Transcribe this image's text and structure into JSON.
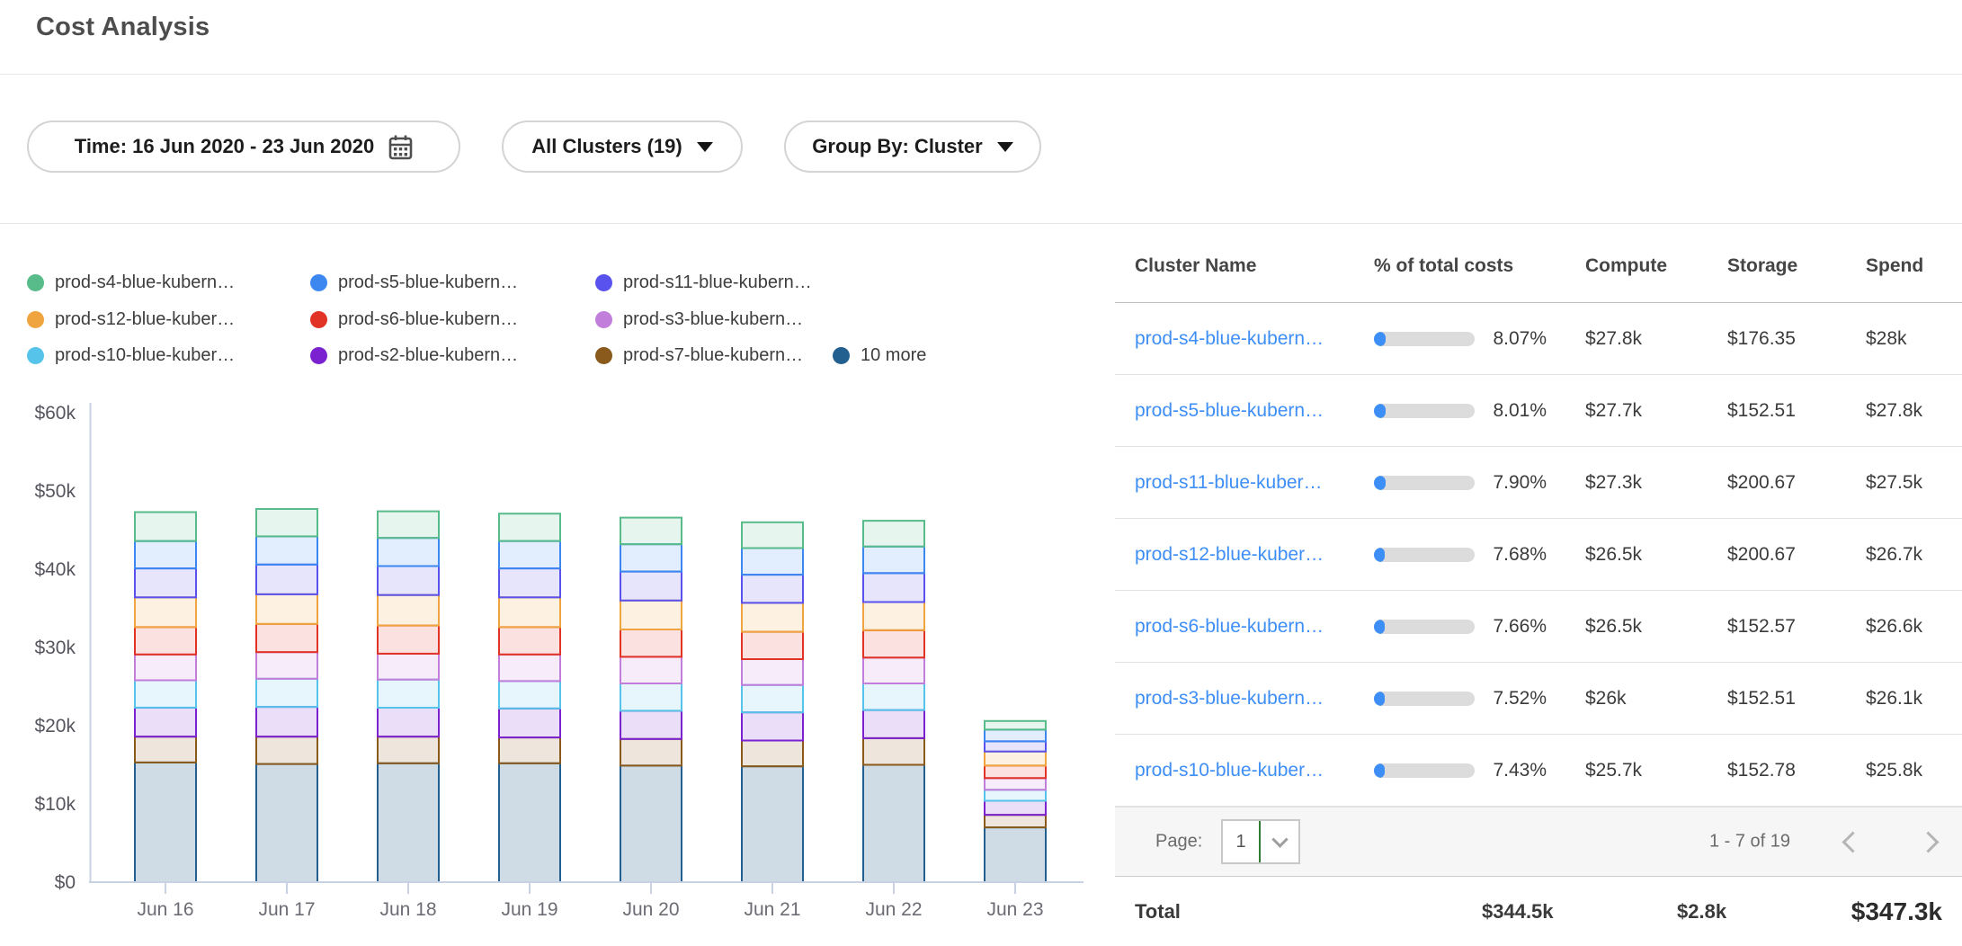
{
  "page": {
    "title": "Cost Analysis"
  },
  "filters": {
    "time": {
      "label": "Time: 16 Jun 2020 - 23 Jun 2020"
    },
    "clusters": {
      "label": "All Clusters (19)"
    },
    "group_by": {
      "label": "Group By: Cluster"
    }
  },
  "legend": {
    "items": [
      {
        "label": "prod-s4-blue-kubern…",
        "color": "#57bb8a"
      },
      {
        "label": "prod-s5-blue-kubern…",
        "color": "#3d87f0"
      },
      {
        "label": "prod-s11-blue-kubern…",
        "color": "#5a52ee"
      },
      {
        "label": "prod-s12-blue-kuber…",
        "color": "#f0a43f"
      },
      {
        "label": "prod-s6-blue-kubern…",
        "color": "#e23327"
      },
      {
        "label": "prod-s3-blue-kubern…",
        "color": "#c27edb"
      },
      {
        "label": "prod-s10-blue-kuber…",
        "color": "#55c3ea"
      },
      {
        "label": "prod-s2-blue-kubern…",
        "color": "#7a22d0"
      },
      {
        "label": "prod-s7-blue-kubern…",
        "color": "#8a5a1c"
      },
      {
        "label": "10 more",
        "color": "#235f8f"
      }
    ]
  },
  "chart_data": {
    "type": "bar",
    "stacked": true,
    "title": "",
    "xlabel": "",
    "ylabel": "",
    "unit": "$k",
    "ylim": [
      0,
      60
    ],
    "yticks": [
      "$0",
      "$10k",
      "$20k",
      "$30k",
      "$40k",
      "$50k",
      "$60k"
    ],
    "categories": [
      "Jun 16",
      "Jun 17",
      "Jun 18",
      "Jun 19",
      "Jun 20",
      "Jun 21",
      "Jun 22",
      "Jun 23"
    ],
    "series": [
      {
        "name": "10 more",
        "color": "#235f8f",
        "values": [
          15.3,
          15.1,
          15.2,
          15.2,
          14.9,
          14.8,
          15.0,
          7.0
        ]
      },
      {
        "name": "prod-s7-blue-kubern…",
        "color": "#8a5a1c",
        "values": [
          3.3,
          3.5,
          3.4,
          3.3,
          3.4,
          3.3,
          3.4,
          1.6
        ]
      },
      {
        "name": "prod-s2-blue-kubern…",
        "color": "#7a22d0",
        "values": [
          3.7,
          3.8,
          3.7,
          3.7,
          3.6,
          3.6,
          3.6,
          1.8
        ]
      },
      {
        "name": "prod-s10-blue-kuber…",
        "color": "#55c3ea",
        "values": [
          3.5,
          3.6,
          3.6,
          3.5,
          3.5,
          3.5,
          3.4,
          1.4
        ]
      },
      {
        "name": "prod-s3-blue-kubern…",
        "color": "#c27edb",
        "values": [
          3.3,
          3.4,
          3.3,
          3.4,
          3.4,
          3.3,
          3.3,
          1.5
        ]
      },
      {
        "name": "prod-s6-blue-kubern…",
        "color": "#e23327",
        "values": [
          3.5,
          3.6,
          3.6,
          3.5,
          3.5,
          3.5,
          3.5,
          1.6
        ]
      },
      {
        "name": "prod-s12-blue-kuber…",
        "color": "#f0a43f",
        "values": [
          3.8,
          3.8,
          3.9,
          3.8,
          3.7,
          3.7,
          3.6,
          1.8
        ]
      },
      {
        "name": "prod-s11-blue-kubern…",
        "color": "#5a52ee",
        "values": [
          3.7,
          3.8,
          3.7,
          3.7,
          3.7,
          3.6,
          3.7,
          1.3
        ]
      },
      {
        "name": "prod-s5-blue-kubern…",
        "color": "#3d87f0",
        "values": [
          3.5,
          3.6,
          3.6,
          3.5,
          3.5,
          3.4,
          3.4,
          1.5
        ]
      },
      {
        "name": "prod-s4-blue-kubern…",
        "color": "#57bb8a",
        "values": [
          3.7,
          3.5,
          3.4,
          3.5,
          3.4,
          3.3,
          3.3,
          1.1
        ]
      }
    ],
    "legend_position": "top-left",
    "grid": false
  },
  "table": {
    "columns": [
      "Cluster Name",
      "% of total costs",
      "Compute",
      "Storage",
      "Spend"
    ],
    "rows": [
      {
        "name": "prod-s4-blue-kubern…",
        "pct": "8.07%",
        "pct_value": 8.07,
        "compute": "$27.8k",
        "storage": "$176.35",
        "spend": "$28k"
      },
      {
        "name": "prod-s5-blue-kubern…",
        "pct": "8.01%",
        "pct_value": 8.01,
        "compute": "$27.7k",
        "storage": "$152.51",
        "spend": "$27.8k"
      },
      {
        "name": "prod-s11-blue-kuber…",
        "pct": "7.90%",
        "pct_value": 7.9,
        "compute": "$27.3k",
        "storage": "$200.67",
        "spend": "$27.5k"
      },
      {
        "name": "prod-s12-blue-kuber…",
        "pct": "7.68%",
        "pct_value": 7.68,
        "compute": "$26.5k",
        "storage": "$200.67",
        "spend": "$26.7k"
      },
      {
        "name": "prod-s6-blue-kubern…",
        "pct": "7.66%",
        "pct_value": 7.66,
        "compute": "$26.5k",
        "storage": "$152.57",
        "spend": "$26.6k"
      },
      {
        "name": "prod-s3-blue-kubern…",
        "pct": "7.52%",
        "pct_value": 7.52,
        "compute": "$26k",
        "storage": "$152.51",
        "spend": "$26.1k"
      },
      {
        "name": "prod-s10-blue-kuber…",
        "pct": "7.43%",
        "pct_value": 7.43,
        "compute": "$25.7k",
        "storage": "$152.78",
        "spend": "$25.8k"
      }
    ],
    "pagination": {
      "page_label": "Page:",
      "page_value": "1",
      "range": "1 - 7 of 19"
    },
    "total": {
      "label": "Total",
      "compute": "$344.5k",
      "storage": "$2.8k",
      "spend": "$347.3k"
    }
  },
  "colors": {
    "link_blue": "#3e8ef7",
    "progress_fill": "#3e8ef7",
    "progress_track": "#dcdcdc",
    "select_accent_green": "#2e7d32",
    "axis": "#c9d2e2"
  }
}
